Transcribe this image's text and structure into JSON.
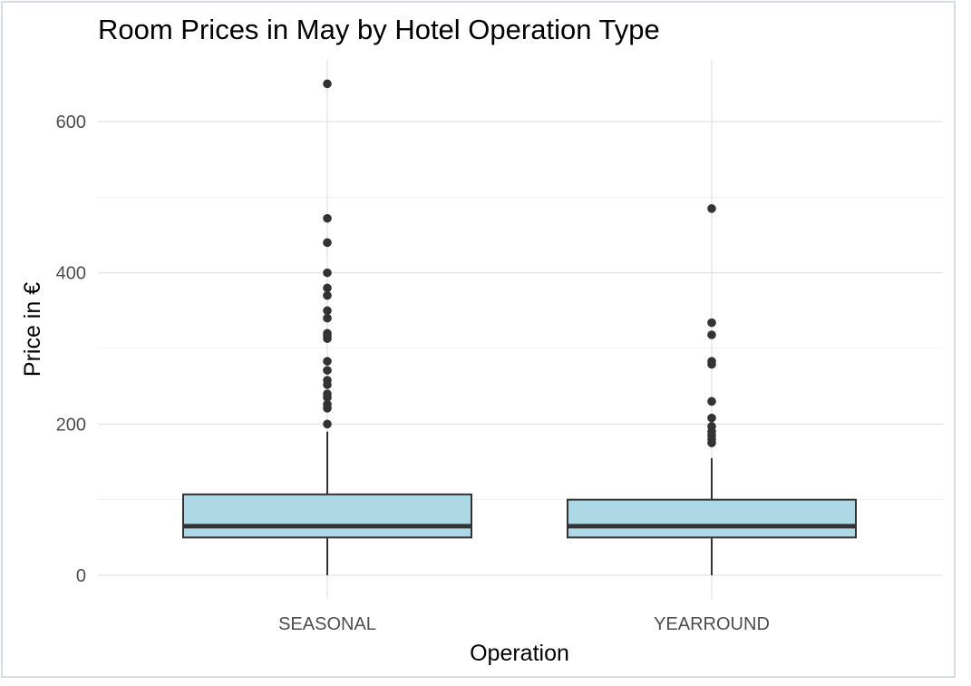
{
  "chart_data": {
    "type": "box",
    "title": "Room Prices in May by Hotel Operation Type",
    "xlabel": "Operation",
    "ylabel": "Price in €",
    "ylim": [
      0,
      650
    ],
    "yticks": [
      0,
      200,
      400,
      600
    ],
    "grid": true,
    "legend": "none",
    "box_color": "#add8e6",
    "line_color": "#333333",
    "categories": [
      "SEASONAL",
      "YEARROUND"
    ],
    "boxes": [
      {
        "category": "SEASONAL",
        "whisker_low": 0,
        "q1": 50,
        "median": 65,
        "q3": 107,
        "whisker_high": 190,
        "outliers": [
          200,
          221,
          226,
          235,
          240,
          252,
          258,
          271,
          283,
          313,
          317,
          320,
          340,
          350,
          370,
          380,
          400,
          440,
          472,
          650
        ]
      },
      {
        "category": "YEARROUND",
        "whisker_low": 0,
        "q1": 50,
        "median": 65,
        "q3": 100,
        "whisker_high": 155,
        "outliers": [
          175,
          180,
          185,
          190,
          197,
          208,
          230,
          279,
          283,
          318,
          334,
          485
        ]
      }
    ]
  }
}
